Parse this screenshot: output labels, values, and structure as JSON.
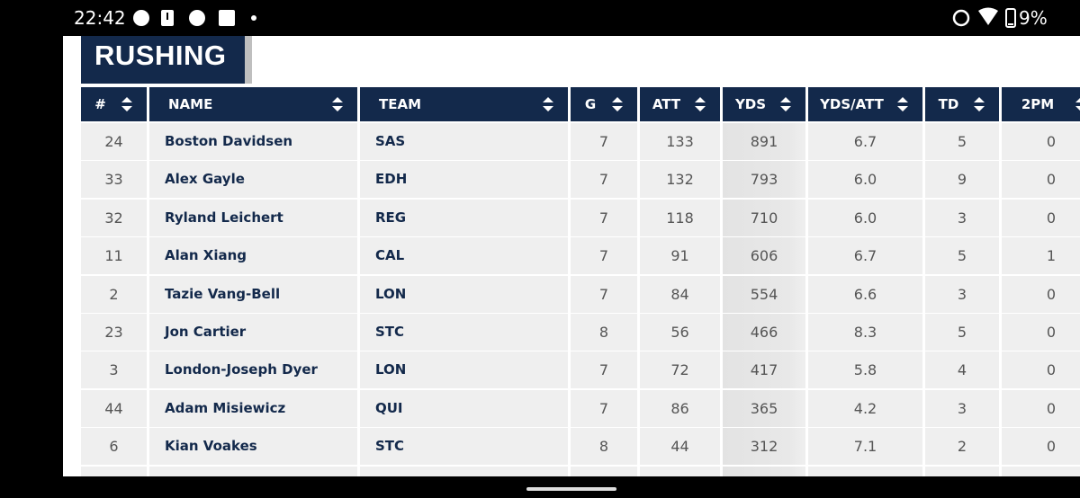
{
  "status_bar": {
    "time": "22:42",
    "battery": "9%"
  },
  "section_title": "RUSHING",
  "table": {
    "columns": [
      "#",
      "NAME",
      "TEAM",
      "G",
      "ATT",
      "YDS",
      "YDS/ATT",
      "TD",
      "2PM"
    ],
    "rows": [
      [
        "24",
        "Boston Davidsen",
        "SAS",
        "7",
        "133",
        "891",
        "6.7",
        "5",
        "0"
      ],
      [
        "33",
        "Alex Gayle",
        "EDH",
        "7",
        "132",
        "793",
        "6.0",
        "9",
        "0"
      ],
      [
        "32",
        "Ryland Leichert",
        "REG",
        "7",
        "118",
        "710",
        "6.0",
        "3",
        "0"
      ],
      [
        "11",
        "Alan Xiang",
        "CAL",
        "7",
        "91",
        "606",
        "6.7",
        "5",
        "1"
      ],
      [
        "2",
        "Tazie Vang-Bell",
        "LON",
        "7",
        "84",
        "554",
        "6.6",
        "3",
        "0"
      ],
      [
        "23",
        "Jon Cartier",
        "STC",
        "8",
        "56",
        "466",
        "8.3",
        "5",
        "0"
      ],
      [
        "3",
        "London-Joseph Dyer",
        "LON",
        "7",
        "72",
        "417",
        "5.8",
        "4",
        "0"
      ],
      [
        "44",
        "Adam Misiewicz",
        "QUI",
        "7",
        "86",
        "365",
        "4.2",
        "3",
        "0"
      ],
      [
        "6",
        "Kian Voakes",
        "STC",
        "8",
        "44",
        "312",
        "7.1",
        "2",
        "0"
      ]
    ]
  }
}
